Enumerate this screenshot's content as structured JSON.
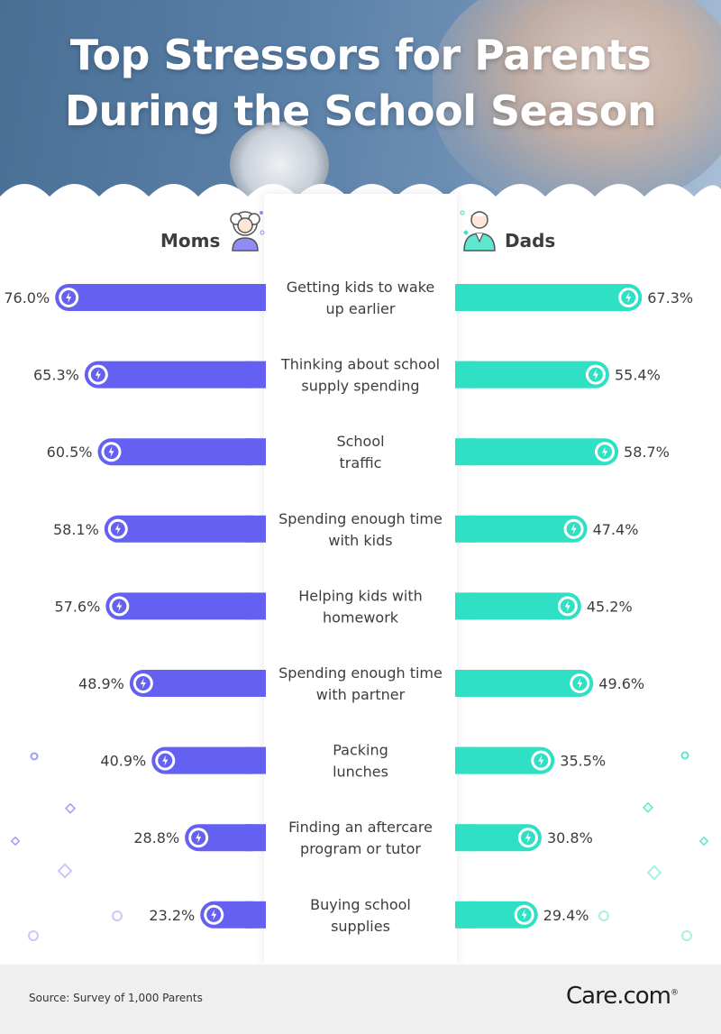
{
  "title_line1": "Top Stressors for Parents",
  "title_line2": "During the School Season",
  "source": "Source: Survey of 1,000 Parents",
  "brand": "Care.com",
  "colors": {
    "moms": "#6461f2",
    "dads": "#2fe0c4",
    "text": "#3d3d3d"
  },
  "chart_data": {
    "type": "bar",
    "orientation": "horizontal-butterfly",
    "unit": "%",
    "series": [
      {
        "name": "Moms",
        "values": [
          76.0,
          65.3,
          60.5,
          58.1,
          57.6,
          48.9,
          40.9,
          28.8,
          23.2
        ]
      },
      {
        "name": "Dads",
        "values": [
          67.3,
          55.4,
          58.7,
          47.4,
          45.2,
          49.6,
          35.5,
          30.8,
          29.4
        ]
      }
    ],
    "categories": [
      [
        "Getting kids to wake",
        "up earlier"
      ],
      [
        "Thinking about school",
        "supply spending"
      ],
      [
        "School",
        "traffic"
      ],
      [
        "Spending enough time",
        "with kids"
      ],
      [
        "Helping kids with",
        "homework"
      ],
      [
        "Spending enough time",
        "with partner"
      ],
      [
        "Packing",
        "lunches"
      ],
      [
        "Finding an aftercare",
        "program or tutor"
      ],
      [
        "Buying school",
        "supplies"
      ]
    ],
    "value_labels": {
      "moms": [
        "76.0%",
        "65.3%",
        "60.5%",
        "58.1%",
        "57.6%",
        "48.9%",
        "40.9%",
        "28.8%",
        "23.2%"
      ],
      "dads": [
        "67.3%",
        "55.4%",
        "58.7%",
        "47.4%",
        "45.2%",
        "49.6%",
        "35.5%",
        "30.8%",
        "29.4%"
      ]
    }
  }
}
